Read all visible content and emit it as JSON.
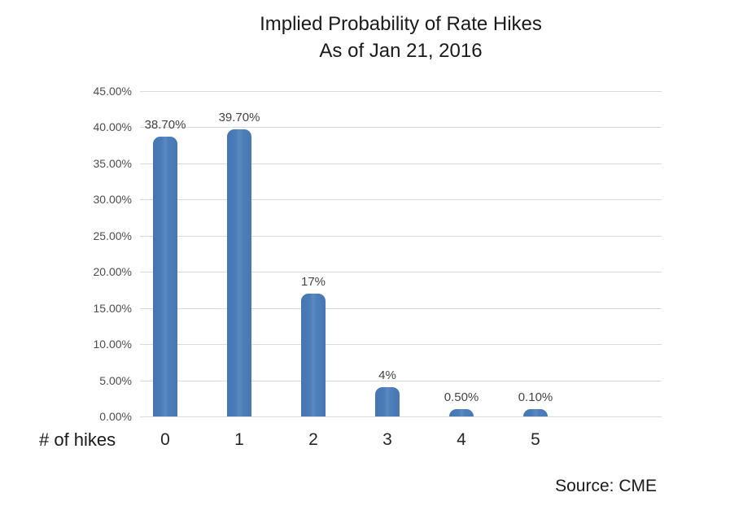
{
  "chart_data": {
    "type": "bar",
    "title": "Implied Probability of Rate Hikes",
    "subtitle": "As of Jan 21, 2016",
    "categories": [
      "0",
      "1",
      "2",
      "3",
      "4",
      "5"
    ],
    "values": [
      38.7,
      39.7,
      17,
      4,
      0.5,
      0.1
    ],
    "value_labels": [
      "38.70%",
      "39.70%",
      "17%",
      "4%",
      "0.50%",
      "0.10%"
    ],
    "xlabel": "# of hikes",
    "ylabel": "",
    "ylim": [
      0,
      45
    ],
    "ytick_labels": [
      "0.00%",
      "5.00%",
      "10.00%",
      "15.00%",
      "20.00%",
      "25.00%",
      "30.00%",
      "35.00%",
      "40.00%",
      "45.00%"
    ],
    "grid": true,
    "legend": false,
    "source": "Source: CME",
    "colors": {
      "bar": "#4a7cba",
      "gridline": "#d9d9d9",
      "axis_text": "#4d4d4d",
      "data_label_text": "#444444",
      "title_text": "#1a1a1a"
    }
  }
}
